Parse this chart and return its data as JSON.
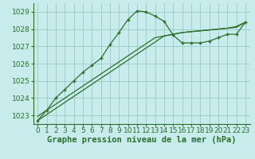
{
  "title": "Graphe pression niveau de la mer (hPa)",
  "bg_color": "#c8ecec",
  "grid_color": "#9ecece",
  "line_color": "#2d6e2d",
  "marker": "+",
  "x_hours": [
    0,
    1,
    2,
    3,
    4,
    5,
    6,
    7,
    8,
    9,
    10,
    11,
    12,
    13,
    14,
    15,
    16,
    17,
    18,
    19,
    20,
    21,
    22,
    23
  ],
  "y_main": [
    1022.7,
    1023.3,
    1024.0,
    1024.5,
    1025.0,
    1025.5,
    1025.9,
    1026.3,
    1027.1,
    1027.8,
    1028.55,
    1029.05,
    1029.0,
    1028.75,
    1028.45,
    1027.65,
    1027.2,
    1027.2,
    1027.2,
    1027.3,
    1027.5,
    1027.7,
    1027.7,
    1028.4
  ],
  "y_line1": [
    1022.7,
    1023.05,
    1023.4,
    1023.75,
    1024.1,
    1024.45,
    1024.8,
    1025.15,
    1025.5,
    1025.85,
    1026.2,
    1026.55,
    1026.9,
    1027.25,
    1027.6,
    1027.7,
    1027.8,
    1027.85,
    1027.9,
    1027.95,
    1028.0,
    1028.05,
    1028.1,
    1028.4
  ],
  "y_line2": [
    1022.95,
    1023.3,
    1023.65,
    1024.0,
    1024.35,
    1024.7,
    1025.05,
    1025.4,
    1025.75,
    1026.1,
    1026.45,
    1026.8,
    1027.15,
    1027.5,
    1027.6,
    1027.7,
    1027.8,
    1027.85,
    1027.9,
    1027.95,
    1028.0,
    1028.05,
    1028.15,
    1028.4
  ],
  "ylim": [
    1022.5,
    1029.5
  ],
  "yticks": [
    1023,
    1024,
    1025,
    1026,
    1027,
    1028,
    1029
  ],
  "xlim": [
    -0.5,
    23.5
  ],
  "xticks": [
    0,
    1,
    2,
    3,
    4,
    5,
    6,
    7,
    8,
    9,
    10,
    11,
    12,
    13,
    14,
    15,
    16,
    17,
    18,
    19,
    20,
    21,
    22,
    23
  ],
  "tick_fontsize": 6.5,
  "label_fontsize": 7.5
}
